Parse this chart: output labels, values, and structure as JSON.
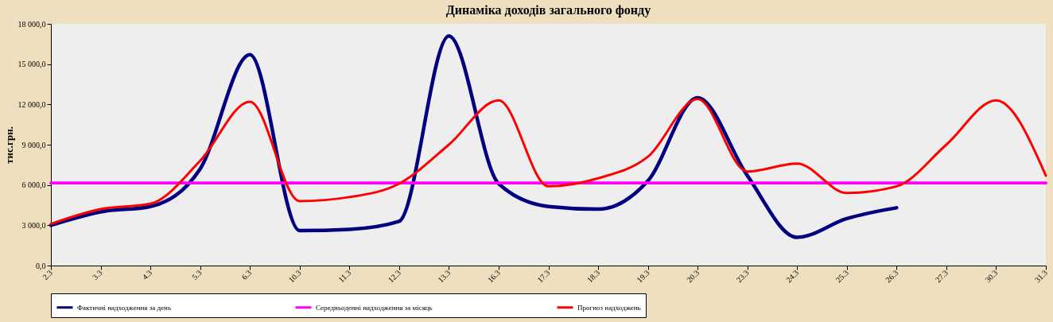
{
  "chart_data": {
    "type": "line",
    "title": "Динаміка доходів загального фонду",
    "ylabel": "тис.грн.",
    "categories": [
      "2.3",
      "3.3",
      "4.3",
      "5.3",
      "6.3",
      "10.3",
      "11.3",
      "12.3",
      "13.3",
      "16.3",
      "17.3",
      "18.3",
      "19.3",
      "20.3",
      "23.3",
      "24.3",
      "25.3",
      "26.3",
      "27.3",
      "30.3",
      "31.3"
    ],
    "series": [
      {
        "name": "Фактичні надходження за день",
        "color": "#000080",
        "values": [
          3000,
          4000,
          4400,
          7200,
          15700,
          2600,
          2700,
          3300,
          17100,
          6100,
          4400,
          4200,
          6300,
          12500,
          6700,
          2100,
          3500,
          4300,
          null,
          null,
          null
        ]
      },
      {
        "name": "Середньоденні надходження за місяць",
        "color": "#ff00ff",
        "values": [
          6150,
          6150,
          6150,
          6150,
          6150,
          6150,
          6150,
          6150,
          6150,
          6150,
          6150,
          6150,
          6150,
          6150,
          6150,
          6150,
          6150,
          6150,
          6150,
          6150,
          6150
        ]
      },
      {
        "name": "Прогноз надходжень",
        "color": "#ff0000",
        "values": [
          3100,
          4200,
          4600,
          7800,
          12200,
          4800,
          5100,
          6100,
          9000,
          12300,
          5900,
          6500,
          8100,
          12400,
          7000,
          7600,
          5400,
          5900,
          9000,
          12300,
          6700
        ]
      }
    ],
    "ylim": [
      0,
      18000
    ],
    "yticks": [
      {
        "value": 0,
        "label": "0,0"
      },
      {
        "value": 3000,
        "label": "3 000,0"
      },
      {
        "value": 6000,
        "label": "6 000,0"
      },
      {
        "value": 9000,
        "label": "9 000,0"
      },
      {
        "value": 12000,
        "label": "12 000,0"
      },
      {
        "value": 15000,
        "label": "15 000,0"
      },
      {
        "value": 18000,
        "label": "18 000,0"
      }
    ],
    "grid": false,
    "legend": "bottom",
    "marker": "none",
    "line_style": "solid"
  }
}
